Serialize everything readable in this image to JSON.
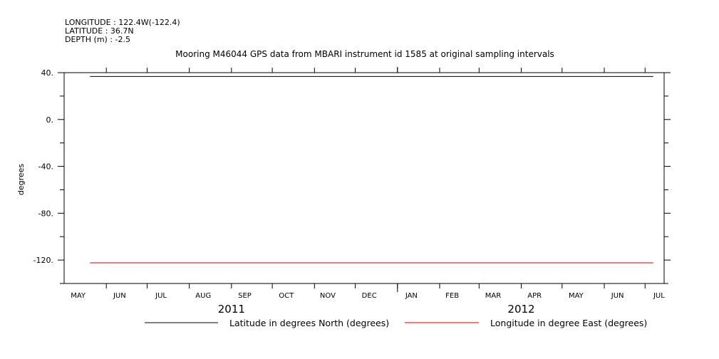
{
  "header": {
    "longitude": "LONGITUDE : 122.4W(-122.4)",
    "latitude": "LATITUDE : 36.7N",
    "depth": "DEPTH (m) : -2.5"
  },
  "chart_data": {
    "type": "line",
    "title": "Mooring M46044 GPS data from MBARI instrument id 1585 at original sampling intervals",
    "ylabel": "degrees",
    "xlabel": "",
    "ylim": [
      -140,
      40
    ],
    "xlim": [
      "2011-05-01",
      "2012-07-15"
    ],
    "y_ticks": [
      {
        "value": 40,
        "label": "40."
      },
      {
        "value": 0,
        "label": "0."
      },
      {
        "value": -40,
        "label": "-40."
      },
      {
        "value": -80,
        "label": "-80."
      },
      {
        "value": -120,
        "label": "-120."
      }
    ],
    "y_minor_step": 20,
    "x_month_labels": [
      {
        "date": "2011-05-01",
        "label": "MAY"
      },
      {
        "date": "2011-06-01",
        "label": "JUN"
      },
      {
        "date": "2011-07-01",
        "label": "JUL"
      },
      {
        "date": "2011-08-01",
        "label": "AUG"
      },
      {
        "date": "2011-09-01",
        "label": "SEP"
      },
      {
        "date": "2011-10-01",
        "label": "OCT"
      },
      {
        "date": "2011-11-01",
        "label": "NOV"
      },
      {
        "date": "2011-12-01",
        "label": "DEC"
      },
      {
        "date": "2012-01-01",
        "label": "JAN"
      },
      {
        "date": "2012-02-01",
        "label": "FEB"
      },
      {
        "date": "2012-03-01",
        "label": "MAR"
      },
      {
        "date": "2012-04-01",
        "label": "APR"
      },
      {
        "date": "2012-05-01",
        "label": "MAY"
      },
      {
        "date": "2012-06-01",
        "label": "JUN"
      },
      {
        "date": "2012-07-01",
        "label": "JUL"
      }
    ],
    "x_year_labels": [
      {
        "date": "2011-09-01",
        "label": "2011"
      },
      {
        "date": "2012-04-01",
        "label": "2012"
      }
    ],
    "year_boundary": "2012-01-01",
    "series": [
      {
        "name": "Latitude in degrees North (degrees)",
        "color": "#000000",
        "x": [
          "2011-05-20",
          "2012-07-07"
        ],
        "values": [
          36.7,
          36.7
        ]
      },
      {
        "name": "Longitude in degree East (degrees)",
        "color": "#cc0000",
        "x": [
          "2011-05-20",
          "2012-07-07"
        ],
        "values": [
          -122.4,
          -122.4
        ]
      }
    ],
    "grid": false,
    "legend_position": "bottom"
  }
}
